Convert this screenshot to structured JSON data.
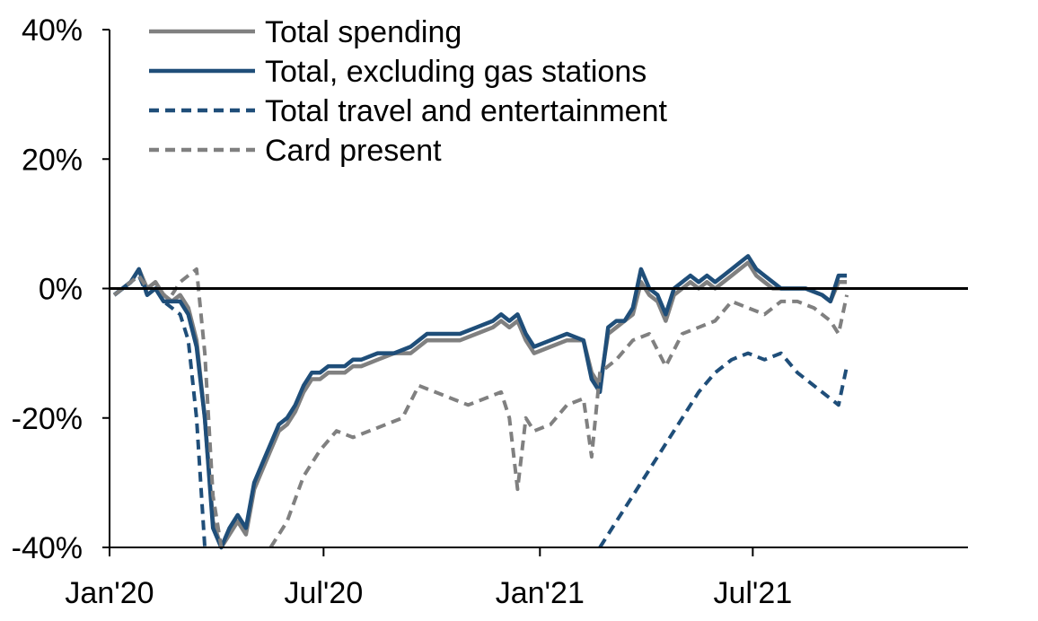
{
  "chart_data": {
    "type": "line",
    "title": "",
    "xlabel": "",
    "ylabel": "",
    "x_axis": {
      "type": "date",
      "range": [
        "2020-01-01",
        "2021-12-31"
      ],
      "ticks": [
        {
          "date": "2020-01-01",
          "label": "Jan'20"
        },
        {
          "date": "2020-07-01",
          "label": "Jul'20"
        },
        {
          "date": "2021-01-01",
          "label": "Jan'21"
        },
        {
          "date": "2021-07-01",
          "label": "Jul'21"
        }
      ]
    },
    "y_axis": {
      "range": [
        -40,
        40
      ],
      "ticks": [
        {
          "value": 40,
          "label": "40%"
        },
        {
          "value": 20,
          "label": "20%"
        },
        {
          "value": 0,
          "label": "0%"
        },
        {
          "value": -20,
          "label": "-20%"
        },
        {
          "value": -40,
          "label": "-40%"
        }
      ]
    },
    "grid": false,
    "legend_position": "top-left",
    "series": [
      {
        "name": "Total spending",
        "color": "#808080",
        "dash": "solid",
        "points": [
          [
            "2020-01-05",
            -1
          ],
          [
            "2020-01-12",
            0
          ],
          [
            "2020-01-19",
            1
          ],
          [
            "2020-01-26",
            3
          ],
          [
            "2020-02-02",
            0
          ],
          [
            "2020-02-09",
            1
          ],
          [
            "2020-02-16",
            -1
          ],
          [
            "2020-02-23",
            -2
          ],
          [
            "2020-03-01",
            -1
          ],
          [
            "2020-03-08",
            -3
          ],
          [
            "2020-03-15",
            -8
          ],
          [
            "2020-03-22",
            -20
          ],
          [
            "2020-03-29",
            -36
          ],
          [
            "2020-04-05",
            -40
          ],
          [
            "2020-04-12",
            -38
          ],
          [
            "2020-04-19",
            -36
          ],
          [
            "2020-04-26",
            -38
          ],
          [
            "2020-05-03",
            -31
          ],
          [
            "2020-05-10",
            -28
          ],
          [
            "2020-05-17",
            -25
          ],
          [
            "2020-05-24",
            -22
          ],
          [
            "2020-05-31",
            -21
          ],
          [
            "2020-06-07",
            -19
          ],
          [
            "2020-06-14",
            -16
          ],
          [
            "2020-06-21",
            -14
          ],
          [
            "2020-06-28",
            -14
          ],
          [
            "2020-07-05",
            -13
          ],
          [
            "2020-07-12",
            -13
          ],
          [
            "2020-07-19",
            -13
          ],
          [
            "2020-07-26",
            -12
          ],
          [
            "2020-08-02",
            -12
          ],
          [
            "2020-08-16",
            -11
          ],
          [
            "2020-08-30",
            -10
          ],
          [
            "2020-09-13",
            -10
          ],
          [
            "2020-09-27",
            -8
          ],
          [
            "2020-10-11",
            -8
          ],
          [
            "2020-10-25",
            -8
          ],
          [
            "2020-11-08",
            -7
          ],
          [
            "2020-11-22",
            -6
          ],
          [
            "2020-11-29",
            -5
          ],
          [
            "2020-12-06",
            -6
          ],
          [
            "2020-12-13",
            -5
          ],
          [
            "2020-12-20",
            -8
          ],
          [
            "2020-12-27",
            -10
          ],
          [
            "2021-01-10",
            -9
          ],
          [
            "2021-01-24",
            -8
          ],
          [
            "2021-02-07",
            -8
          ],
          [
            "2021-02-14",
            -13
          ],
          [
            "2021-02-21",
            -15
          ],
          [
            "2021-02-28",
            -7
          ],
          [
            "2021-03-07",
            -6
          ],
          [
            "2021-03-14",
            -5
          ],
          [
            "2021-03-21",
            -4
          ],
          [
            "2021-03-28",
            1
          ],
          [
            "2021-04-04",
            -1
          ],
          [
            "2021-04-11",
            -2
          ],
          [
            "2021-04-18",
            -5
          ],
          [
            "2021-04-25",
            -1
          ],
          [
            "2021-05-02",
            0
          ],
          [
            "2021-05-09",
            1
          ],
          [
            "2021-05-16",
            0
          ],
          [
            "2021-05-23",
            1
          ],
          [
            "2021-05-30",
            0
          ],
          [
            "2021-06-06",
            1
          ],
          [
            "2021-06-13",
            2
          ],
          [
            "2021-06-20",
            3
          ],
          [
            "2021-06-27",
            4
          ],
          [
            "2021-07-04",
            2
          ],
          [
            "2021-07-11",
            1
          ],
          [
            "2021-07-18",
            0
          ],
          [
            "2021-07-25",
            0
          ],
          [
            "2021-08-01",
            0
          ],
          [
            "2021-08-15",
            0
          ],
          [
            "2021-08-29",
            -1
          ],
          [
            "2021-09-05",
            -2
          ],
          [
            "2021-09-12",
            1
          ],
          [
            "2021-09-19",
            1
          ]
        ]
      },
      {
        "name": "Total, excluding gas stations",
        "color": "#1f4e79",
        "dash": "solid",
        "points": [
          [
            "2020-01-05",
            -1
          ],
          [
            "2020-01-12",
            0
          ],
          [
            "2020-01-19",
            1
          ],
          [
            "2020-01-26",
            3
          ],
          [
            "2020-02-02",
            -1
          ],
          [
            "2020-02-09",
            0
          ],
          [
            "2020-02-16",
            -2
          ],
          [
            "2020-02-23",
            -2
          ],
          [
            "2020-03-01",
            -2
          ],
          [
            "2020-03-08",
            -4
          ],
          [
            "2020-03-15",
            -9
          ],
          [
            "2020-03-22",
            -20
          ],
          [
            "2020-03-29",
            -37
          ],
          [
            "2020-04-05",
            -40
          ],
          [
            "2020-04-12",
            -37
          ],
          [
            "2020-04-19",
            -35
          ],
          [
            "2020-04-26",
            -37
          ],
          [
            "2020-05-03",
            -30
          ],
          [
            "2020-05-10",
            -27
          ],
          [
            "2020-05-17",
            -24
          ],
          [
            "2020-05-24",
            -21
          ],
          [
            "2020-05-31",
            -20
          ],
          [
            "2020-06-07",
            -18
          ],
          [
            "2020-06-14",
            -15
          ],
          [
            "2020-06-21",
            -13
          ],
          [
            "2020-06-28",
            -13
          ],
          [
            "2020-07-05",
            -12
          ],
          [
            "2020-07-12",
            -12
          ],
          [
            "2020-07-19",
            -12
          ],
          [
            "2020-07-26",
            -11
          ],
          [
            "2020-08-02",
            -11
          ],
          [
            "2020-08-16",
            -10
          ],
          [
            "2020-08-30",
            -10
          ],
          [
            "2020-09-13",
            -9
          ],
          [
            "2020-09-27",
            -7
          ],
          [
            "2020-10-11",
            -7
          ],
          [
            "2020-10-25",
            -7
          ],
          [
            "2020-11-08",
            -6
          ],
          [
            "2020-11-22",
            -5
          ],
          [
            "2020-11-29",
            -4
          ],
          [
            "2020-12-06",
            -5
          ],
          [
            "2020-12-13",
            -4
          ],
          [
            "2020-12-20",
            -7
          ],
          [
            "2020-12-27",
            -9
          ],
          [
            "2021-01-10",
            -8
          ],
          [
            "2021-01-24",
            -7
          ],
          [
            "2021-02-07",
            -8
          ],
          [
            "2021-02-14",
            -14
          ],
          [
            "2021-02-21",
            -16
          ],
          [
            "2021-02-28",
            -6
          ],
          [
            "2021-03-07",
            -5
          ],
          [
            "2021-03-14",
            -5
          ],
          [
            "2021-03-21",
            -3
          ],
          [
            "2021-03-28",
            3
          ],
          [
            "2021-04-04",
            0
          ],
          [
            "2021-04-11",
            -1
          ],
          [
            "2021-04-18",
            -4
          ],
          [
            "2021-04-25",
            0
          ],
          [
            "2021-05-02",
            1
          ],
          [
            "2021-05-09",
            2
          ],
          [
            "2021-05-16",
            1
          ],
          [
            "2021-05-23",
            2
          ],
          [
            "2021-05-30",
            1
          ],
          [
            "2021-06-06",
            2
          ],
          [
            "2021-06-13",
            3
          ],
          [
            "2021-06-20",
            4
          ],
          [
            "2021-06-27",
            5
          ],
          [
            "2021-07-04",
            3
          ],
          [
            "2021-07-11",
            2
          ],
          [
            "2021-07-18",
            1
          ],
          [
            "2021-07-25",
            0
          ],
          [
            "2021-08-01",
            0
          ],
          [
            "2021-08-15",
            0
          ],
          [
            "2021-08-29",
            -1
          ],
          [
            "2021-09-05",
            -2
          ],
          [
            "2021-09-12",
            2
          ],
          [
            "2021-09-19",
            2
          ]
        ]
      },
      {
        "name": "Total travel and entertainment",
        "color": "#1f4e79",
        "dash": "dashed",
        "points": [
          [
            "2020-01-05",
            -1
          ],
          [
            "2020-01-12",
            0
          ],
          [
            "2020-01-19",
            1
          ],
          [
            "2020-01-26",
            2
          ],
          [
            "2020-02-02",
            -1
          ],
          [
            "2020-02-09",
            0
          ],
          [
            "2020-02-16",
            -2
          ],
          [
            "2020-02-23",
            -3
          ],
          [
            "2020-03-01",
            -4
          ],
          [
            "2020-03-08",
            -8
          ],
          [
            "2020-03-15",
            -20
          ],
          [
            "2020-03-22",
            -40
          ],
          null,
          [
            "2021-02-21",
            -40
          ],
          [
            "2021-03-07",
            -36
          ],
          [
            "2021-03-21",
            -32
          ],
          [
            "2021-04-04",
            -28
          ],
          [
            "2021-04-18",
            -24
          ],
          [
            "2021-05-02",
            -20
          ],
          [
            "2021-05-16",
            -16
          ],
          [
            "2021-05-30",
            -13
          ],
          [
            "2021-06-13",
            -11
          ],
          [
            "2021-06-27",
            -10
          ],
          [
            "2021-07-11",
            -11
          ],
          [
            "2021-07-25",
            -10
          ],
          [
            "2021-08-08",
            -13
          ],
          [
            "2021-08-22",
            -15
          ],
          [
            "2021-09-05",
            -17
          ],
          [
            "2021-09-12",
            -18
          ],
          [
            "2021-09-19",
            -12
          ]
        ]
      },
      {
        "name": "Card present",
        "color": "#808080",
        "dash": "dashed",
        "points": [
          [
            "2020-01-05",
            -1
          ],
          [
            "2020-01-12",
            0
          ],
          [
            "2020-01-19",
            1
          ],
          [
            "2020-01-26",
            2
          ],
          [
            "2020-02-02",
            0
          ],
          [
            "2020-02-09",
            1
          ],
          [
            "2020-02-16",
            -1
          ],
          [
            "2020-02-23",
            -1
          ],
          [
            "2020-03-01",
            1
          ],
          [
            "2020-03-08",
            2
          ],
          [
            "2020-03-15",
            3
          ],
          [
            "2020-03-22",
            -10
          ],
          [
            "2020-03-29",
            -32
          ],
          [
            "2020-04-05",
            -40
          ],
          null,
          [
            "2020-05-17",
            -40
          ],
          [
            "2020-05-31",
            -36
          ],
          [
            "2020-06-14",
            -29
          ],
          [
            "2020-06-28",
            -25
          ],
          [
            "2020-07-12",
            -22
          ],
          [
            "2020-07-26",
            -23
          ],
          [
            "2020-08-09",
            -22
          ],
          [
            "2020-08-23",
            -21
          ],
          [
            "2020-09-06",
            -20
          ],
          [
            "2020-09-20",
            -15
          ],
          [
            "2020-10-04",
            -16
          ],
          [
            "2020-10-18",
            -17
          ],
          [
            "2020-11-01",
            -18
          ],
          [
            "2020-11-15",
            -17
          ],
          [
            "2020-11-29",
            -16
          ],
          [
            "2020-12-06",
            -20
          ],
          [
            "2020-12-13",
            -31
          ],
          [
            "2020-12-20",
            -20
          ],
          [
            "2020-12-27",
            -22
          ],
          [
            "2021-01-10",
            -21
          ],
          [
            "2021-01-24",
            -18
          ],
          [
            "2021-02-07",
            -17
          ],
          [
            "2021-02-14",
            -26
          ],
          [
            "2021-02-21",
            -13
          ],
          [
            "2021-03-07",
            -11
          ],
          [
            "2021-03-21",
            -8
          ],
          [
            "2021-04-04",
            -7
          ],
          [
            "2021-04-18",
            -12
          ],
          [
            "2021-05-02",
            -7
          ],
          [
            "2021-05-16",
            -6
          ],
          [
            "2021-05-30",
            -5
          ],
          [
            "2021-06-13",
            -2
          ],
          [
            "2021-06-27",
            -3
          ],
          [
            "2021-07-11",
            -4
          ],
          [
            "2021-07-25",
            -2
          ],
          [
            "2021-08-08",
            -2
          ],
          [
            "2021-08-22",
            -3
          ],
          [
            "2021-09-05",
            -5
          ],
          [
            "2021-09-12",
            -7
          ],
          [
            "2021-09-19",
            -1
          ]
        ]
      }
    ]
  }
}
